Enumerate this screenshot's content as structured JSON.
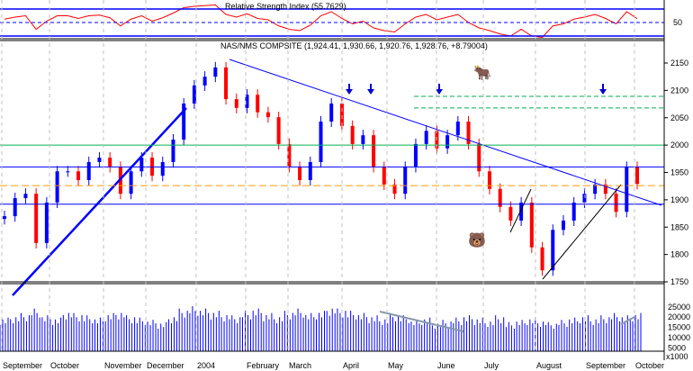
{
  "chart_data": {
    "type": "candlestick",
    "title": "NAS/NMS COMPSITE (1,924.41, 1,930.66, 1,920.76, 1,928.76, +8.79004)",
    "rsi_title": "Relative Strength Index (55.7629)",
    "x_ticks": [
      "September",
      "October",
      "November",
      "December",
      "2004",
      "February",
      "March",
      "April",
      "May",
      "June",
      "July",
      "August",
      "September",
      "October"
    ],
    "price_ticks": [
      2150,
      2100,
      2050,
      2000,
      1950,
      1900,
      1850,
      1800,
      1750
    ],
    "price_range": [
      1750,
      2150
    ],
    "rsi_tick": "50",
    "volume_ticks": [
      "25000",
      "20000",
      "15000",
      "10000",
      "5000"
    ],
    "volume_unit": "x1000",
    "closes": [
      1870,
      1903,
      1911,
      1821,
      1895,
      1952,
      1952,
      1936,
      1969,
      1977,
      1960,
      1911,
      1952,
      1977,
      1944,
      1969,
      2010,
      2076,
      2109,
      2125,
      2142,
      2084,
      2068,
      2092,
      2060,
      2051,
      2002,
      1960,
      1936,
      1969,
      2043,
      2076,
      2035,
      2002,
      2018,
      1960,
      1928,
      1911,
      1960,
      2002,
      2026,
      1994,
      2018,
      2043,
      2002,
      1952,
      1920,
      1887,
      1862,
      1895,
      1813,
      1771,
      1845,
      1862,
      1895,
      1911,
      1928,
      1911,
      1878,
      1960,
      1929
    ],
    "volume": [
      18000,
      19000,
      20000,
      22000,
      19000,
      18000,
      21000,
      20000,
      19000,
      18000,
      20000,
      21000,
      19000,
      18000,
      17000,
      16000,
      19000,
      22000,
      23000,
      22000,
      21000,
      20000,
      19000,
      21000,
      22000,
      20000,
      19000,
      21000,
      22000,
      20000,
      21000,
      23000,
      22000,
      21000,
      20000,
      19000,
      18000,
      20000,
      19000,
      17000,
      18000,
      16000,
      17000,
      18000,
      19000,
      18000,
      17000,
      19000,
      16000,
      17000,
      18000,
      17000,
      16000,
      17000,
      18000,
      19000,
      18000,
      19000,
      20000,
      19000,
      20000
    ],
    "rsi": [
      55,
      58,
      60,
      40,
      52,
      60,
      60,
      56,
      60,
      61,
      57,
      45,
      55,
      60,
      52,
      57,
      64,
      72,
      74,
      75,
      76,
      62,
      58,
      63,
      56,
      54,
      45,
      40,
      38,
      46,
      60,
      66,
      56,
      48,
      52,
      42,
      38,
      36,
      48,
      58,
      62,
      54,
      58,
      62,
      50,
      42,
      38,
      33,
      30,
      40,
      30,
      28,
      45,
      48,
      55,
      58,
      62,
      56,
      48,
      66,
      55.76
    ],
    "horizontal_levels": {
      "blue": [
        1960,
        1892
      ],
      "green_solid": [
        2000
      ],
      "green_dashed": [
        2089,
        2068
      ],
      "orange_dashed": [
        1926
      ]
    },
    "colors": {
      "up": "#0000ff",
      "down": "#ff0000",
      "rsi": "#ff0000",
      "volume": "#0000ff",
      "grid": "#c0c0c0"
    }
  }
}
